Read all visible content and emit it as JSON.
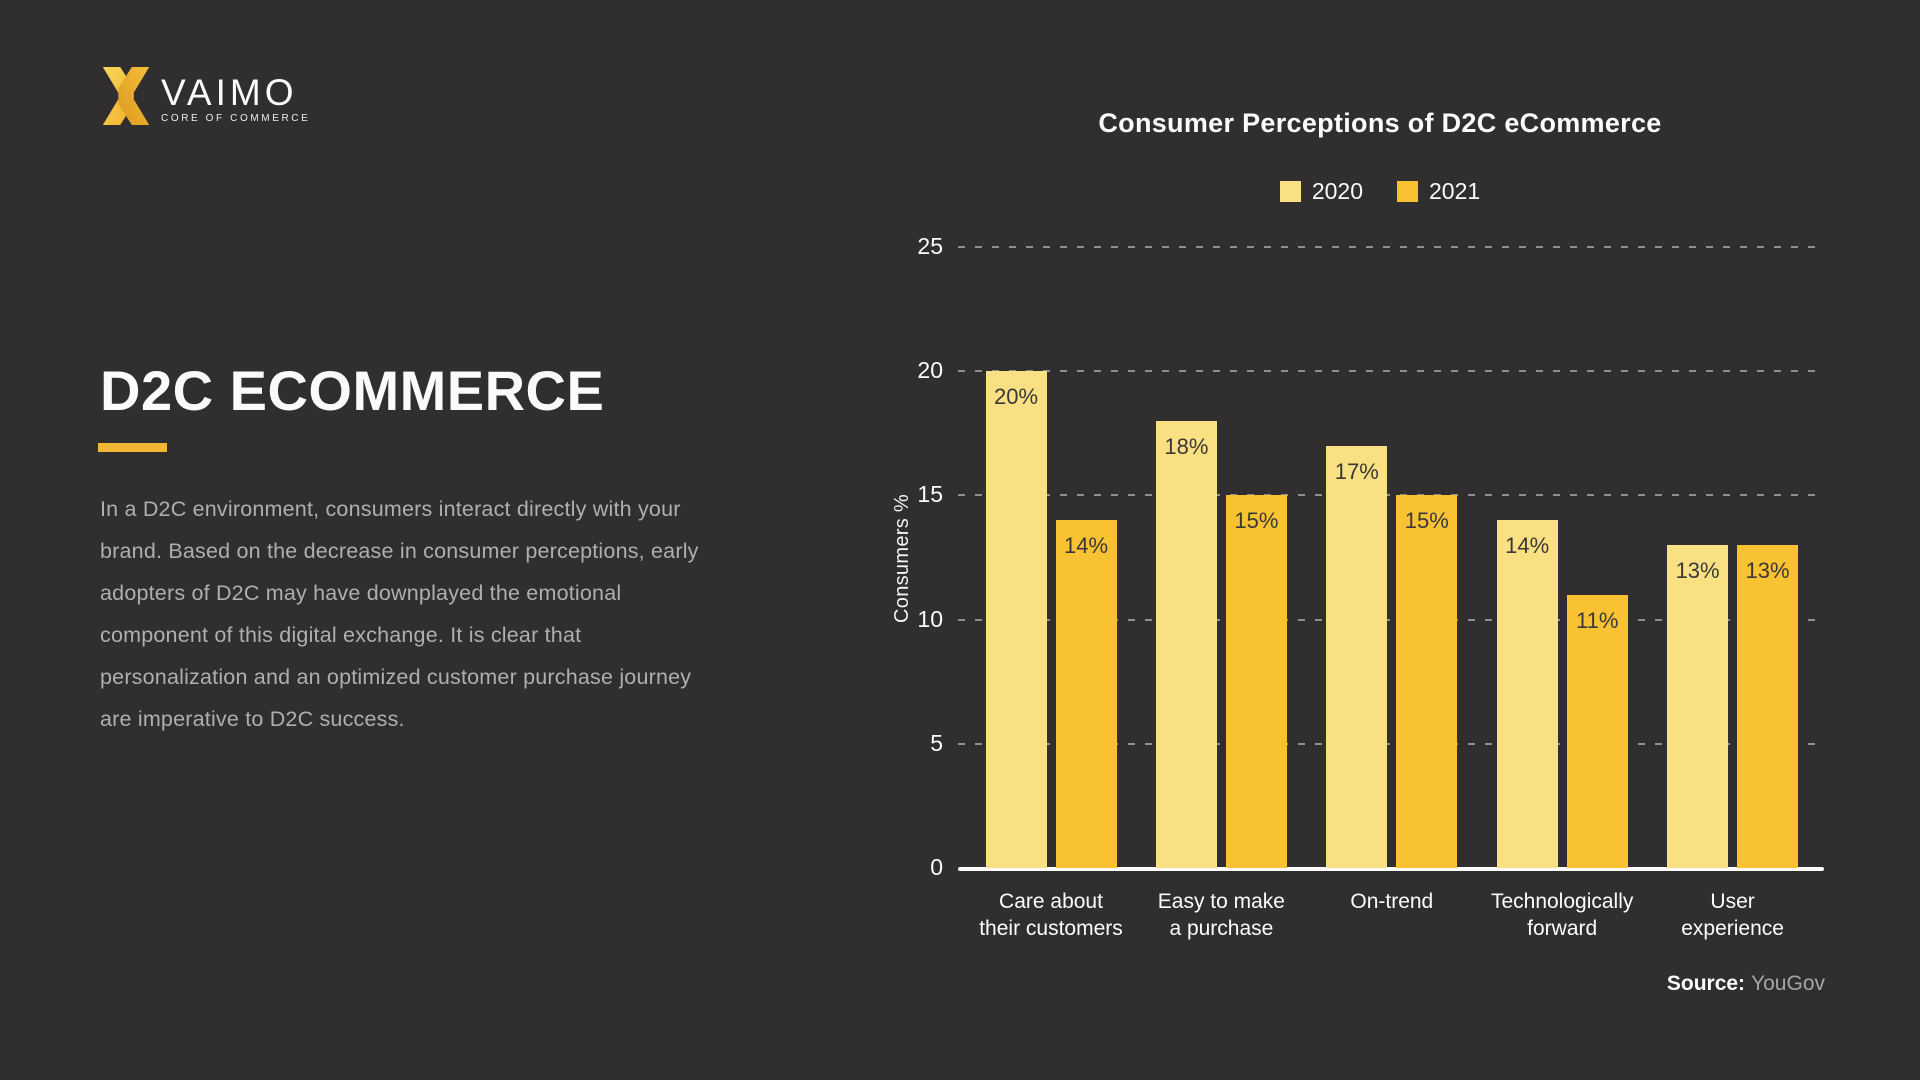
{
  "brand": {
    "name": "VAIMO",
    "tagline": "CORE OF COMMERCE",
    "logo_icon": "vaimo-x-icon"
  },
  "left_panel": {
    "title": "D2C ECOMMERCE",
    "paragraph": "In a D2C environment, consumers interact directly with your brand. Based on the decrease in consumer perceptions, early adopters of D2C may have downplayed the emotional component of this digital exchange. It is clear that personalization and an optimized customer purchase journey are imperative to D2C success."
  },
  "source": {
    "label": "Source:",
    "value": "YouGov"
  },
  "colors": {
    "background": "#302E2E",
    "accent": "#F2B633",
    "bar_2020": "#F9E183",
    "bar_2021": "#F9C232",
    "text_primary": "#FCFCFC",
    "text_muted": "#B1AFAD",
    "value_label": "#3A3838",
    "gridline": "#A8A8A8"
  },
  "chart_data": {
    "type": "bar",
    "title": "Consumer Perceptions of D2C eCommerce",
    "ylabel": "Consumers %",
    "xlabel": "",
    "ylim": [
      0,
      25
    ],
    "yticks": [
      0,
      5,
      10,
      15,
      20,
      25
    ],
    "grid": "horizontal-dashed",
    "legend_position": "top-center",
    "value_suffix": "%",
    "categories": [
      "Care about\ntheir customers",
      "Easy to make\na purchase",
      "On-trend",
      "Technologically\nforward",
      "User\nexperience"
    ],
    "series": [
      {
        "name": "2020",
        "color": "#F9E183",
        "values": [
          20,
          18,
          17,
          14,
          13
        ]
      },
      {
        "name": "2021",
        "color": "#F9C232",
        "values": [
          14,
          15,
          15,
          11,
          13
        ]
      }
    ]
  }
}
